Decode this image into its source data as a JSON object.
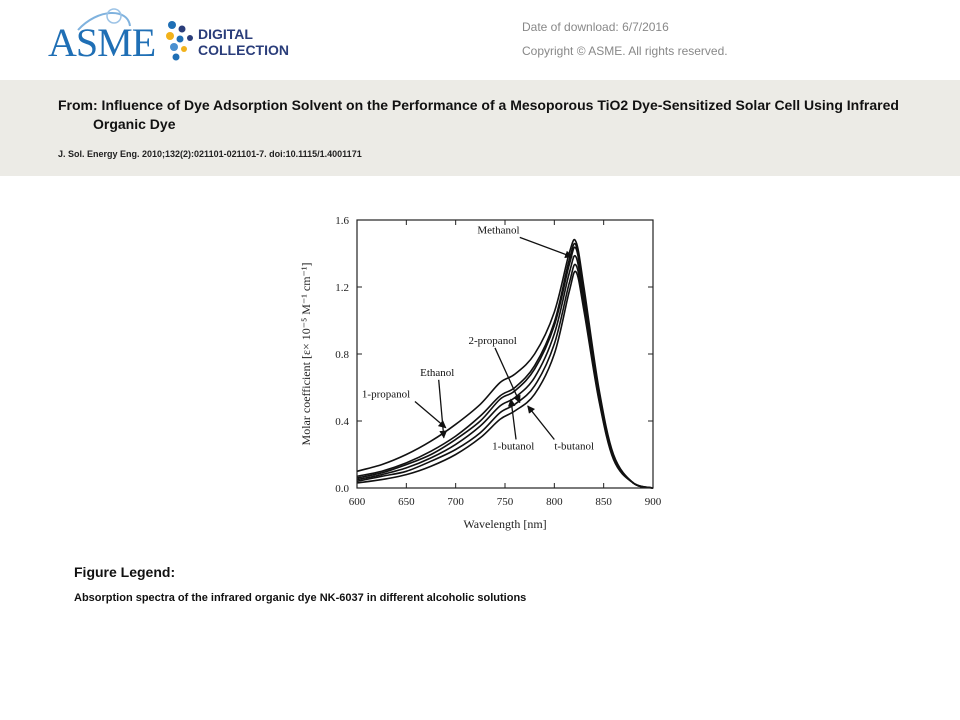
{
  "header": {
    "logo_text": "ASME",
    "logo_sub_line1": "DIGITAL",
    "logo_sub_line2": "COLLECTION",
    "download_label": "Date of download:  6/7/2016",
    "copyright": "Copyright © ASME. All rights reserved."
  },
  "article": {
    "from": "From: Influence of Dye Adsorption Solvent on the Performance of a Mesoporous TiO2 Dye-Sensitized Solar Cell Using Infrared Organic Dye",
    "citation": "J. Sol. Energy Eng. 2010;132(2):021101-021101-7. doi:10.1115/1.4001171"
  },
  "figure": {
    "legend_title": "Figure Legend:",
    "legend_text": "Absorption  spectra  of  the  infrared  organic  dye  NK-6037  in  different  alcoholic  solutions"
  },
  "colors": {
    "header_band": "#ecebe6",
    "logo_blue": "#1f6fb5",
    "logo_navy": "#2a3d7a",
    "logo_yellow": "#f2b21b"
  },
  "chart_data": {
    "type": "line",
    "xlabel": "Wavelength [nm]",
    "ylabel": "Molar coefficient [ε× 10⁻⁵ M⁻¹ cm⁻¹]",
    "xlim": [
      600,
      900
    ],
    "ylim": [
      0.0,
      1.6
    ],
    "xticks": [
      "600",
      "650",
      "700",
      "750",
      "800",
      "850",
      "900"
    ],
    "yticks": [
      "0.0",
      "0.4",
      "0.8",
      "1.2",
      "1.6"
    ],
    "series": [
      {
        "name": "1-propanol",
        "x": [
          600,
          625,
          650,
          675,
          700,
          725,
          745,
          760,
          780,
          800,
          815,
          822,
          830,
          845,
          860,
          880,
          900
        ],
        "y": [
          0.1,
          0.14,
          0.2,
          0.28,
          0.38,
          0.5,
          0.63,
          0.68,
          0.8,
          1.05,
          1.4,
          1.47,
          1.2,
          0.6,
          0.2,
          0.03,
          0.0
        ]
      },
      {
        "name": "Ethanol",
        "x": [
          600,
          625,
          650,
          675,
          700,
          725,
          745,
          760,
          780,
          800,
          815,
          822,
          830,
          845,
          860,
          880,
          900
        ],
        "y": [
          0.07,
          0.1,
          0.15,
          0.22,
          0.31,
          0.43,
          0.55,
          0.6,
          0.73,
          0.99,
          1.36,
          1.45,
          1.18,
          0.58,
          0.19,
          0.03,
          0.0
        ]
      },
      {
        "name": "Methanol",
        "x": [
          600,
          625,
          650,
          675,
          700,
          725,
          745,
          760,
          780,
          800,
          815,
          822,
          830,
          845,
          860,
          880,
          900
        ],
        "y": [
          0.06,
          0.09,
          0.14,
          0.2,
          0.29,
          0.4,
          0.53,
          0.58,
          0.71,
          0.97,
          1.33,
          1.43,
          1.16,
          0.57,
          0.19,
          0.03,
          0.0
        ]
      },
      {
        "name": "2-propanol",
        "x": [
          600,
          625,
          650,
          675,
          700,
          725,
          745,
          760,
          780,
          800,
          815,
          822,
          830,
          845,
          860,
          880,
          900
        ],
        "y": [
          0.05,
          0.08,
          0.12,
          0.18,
          0.26,
          0.37,
          0.49,
          0.54,
          0.66,
          0.92,
          1.28,
          1.38,
          1.12,
          0.55,
          0.18,
          0.03,
          0.0
        ]
      },
      {
        "name": "1-butanol",
        "x": [
          600,
          625,
          650,
          675,
          700,
          725,
          745,
          760,
          780,
          800,
          815,
          822,
          830,
          845,
          860,
          880,
          900
        ],
        "y": [
          0.04,
          0.07,
          0.1,
          0.16,
          0.23,
          0.33,
          0.45,
          0.5,
          0.61,
          0.86,
          1.22,
          1.33,
          1.09,
          0.54,
          0.18,
          0.03,
          0.0
        ]
      },
      {
        "name": "t-butanol",
        "x": [
          600,
          625,
          650,
          675,
          700,
          725,
          745,
          760,
          780,
          800,
          815,
          822,
          830,
          845,
          860,
          880,
          900
        ],
        "y": [
          0.03,
          0.05,
          0.08,
          0.13,
          0.2,
          0.3,
          0.41,
          0.46,
          0.56,
          0.8,
          1.17,
          1.29,
          1.06,
          0.53,
          0.17,
          0.03,
          0.0
        ]
      }
    ],
    "annotations": [
      {
        "text": "Methanol",
        "label_x": 722,
        "label_y": 1.52,
        "arrow_to_x": 818,
        "arrow_to_y": 1.38
      },
      {
        "text": "2-propanol",
        "label_x": 713,
        "label_y": 0.86,
        "arrow_to_x": 765,
        "arrow_to_y": 0.51
      },
      {
        "text": "Ethanol",
        "label_x": 664,
        "label_y": 0.67,
        "arrow_to_x": 688,
        "arrow_to_y": 0.3
      },
      {
        "text": "1-propanol",
        "label_x": 605,
        "label_y": 0.54,
        "arrow_to_x": 690,
        "arrow_to_y": 0.36
      },
      {
        "text": "1-butanol",
        "label_x": 737,
        "label_y": 0.23,
        "arrow_to_x": 756,
        "arrow_to_y": 0.53
      },
      {
        "text": "t-butanol",
        "label_x": 800,
        "label_y": 0.23,
        "arrow_to_x": 773,
        "arrow_to_y": 0.49
      }
    ]
  }
}
